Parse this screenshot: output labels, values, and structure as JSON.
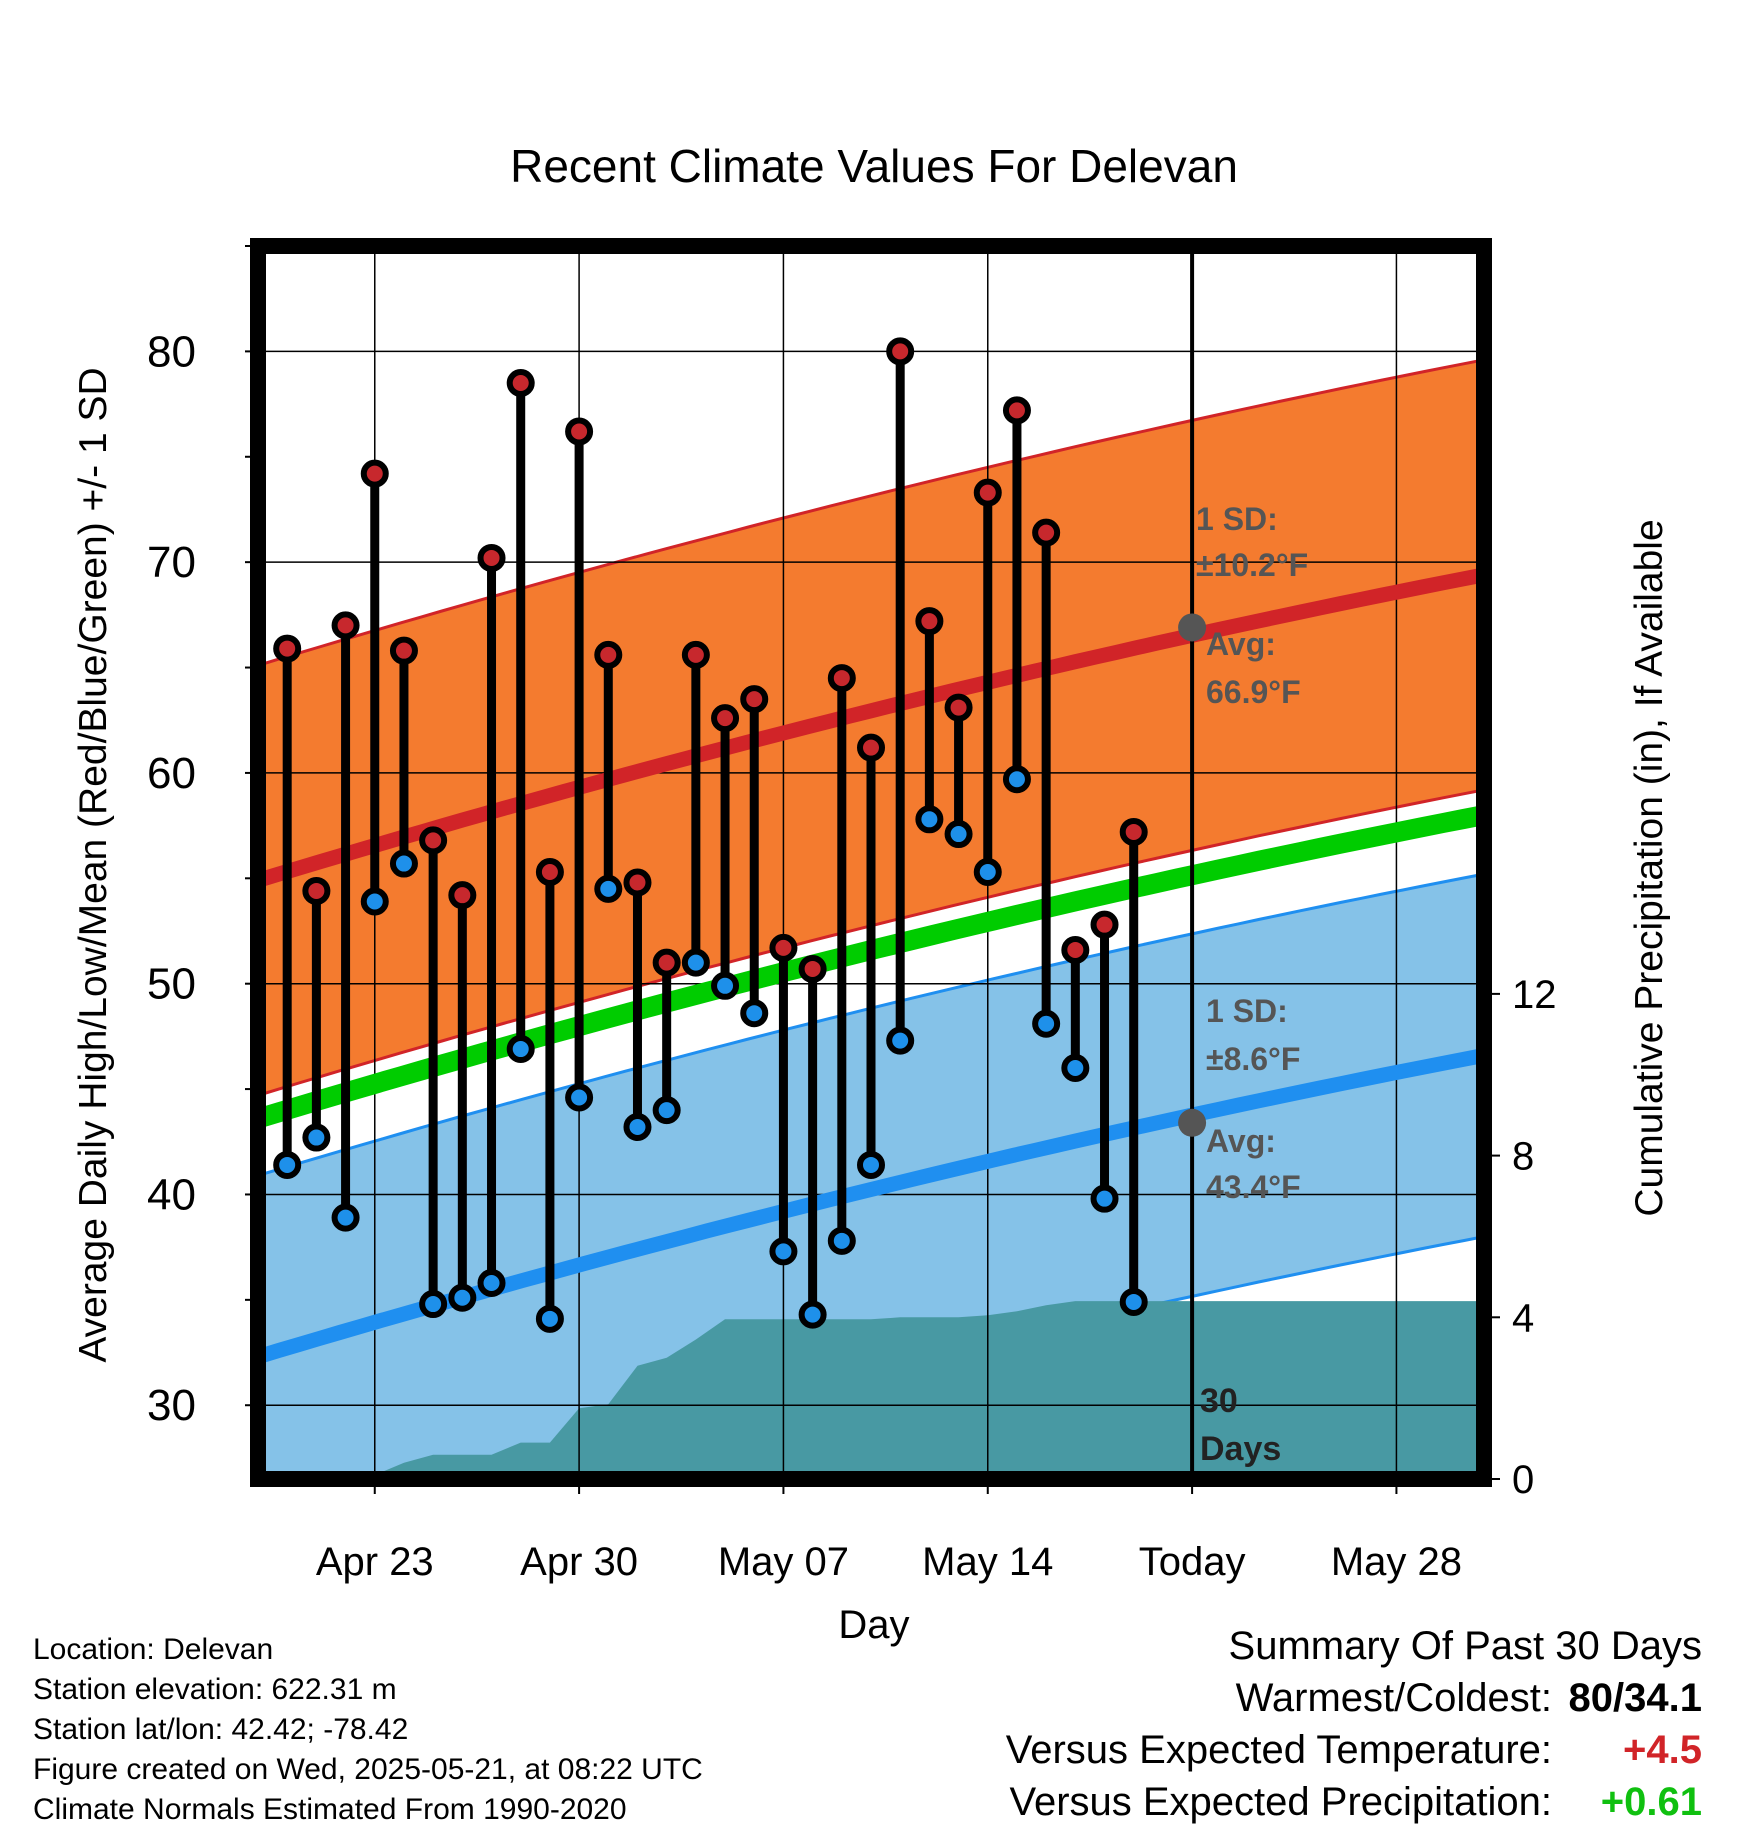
{
  "chart_data": {
    "type": "line",
    "title": "Recent Climate Values For Delevan",
    "xlabel": "Day",
    "ylabel": "Average Daily High/Low/Mean (Red/Blue/Green) +/- 1 SD",
    "ylabel_right": "Cumulative Precipitation (in), If Available",
    "x_ticks": [
      "Apr 23",
      "Apr 30",
      "May 07",
      "May 14",
      "Today",
      "May 28"
    ],
    "x_range": [
      "2025-04-19",
      "2025-05-31"
    ],
    "ylim": [
      26.5,
      85
    ],
    "y_ticks": [
      30,
      40,
      50,
      60,
      70,
      80
    ],
    "y2lim": [
      0,
      30.5
    ],
    "y2_ticks": [
      0,
      4,
      8,
      12
    ],
    "today": "2025-05-21",
    "today_label": [
      "30",
      "Days"
    ],
    "days": [
      "2025-04-20",
      "2025-04-21",
      "2025-04-22",
      "2025-04-23",
      "2025-04-24",
      "2025-04-25",
      "2025-04-26",
      "2025-04-27",
      "2025-04-28",
      "2025-04-29",
      "2025-04-30",
      "2025-05-01",
      "2025-05-02",
      "2025-05-03",
      "2025-05-04",
      "2025-05-05",
      "2025-05-06",
      "2025-05-07",
      "2025-05-08",
      "2025-05-09",
      "2025-05-10",
      "2025-05-11",
      "2025-05-12",
      "2025-05-13",
      "2025-05-14",
      "2025-05-15",
      "2025-05-16",
      "2025-05-17",
      "2025-05-18",
      "2025-05-19",
      "2025-05-20"
    ],
    "daily_high": [
      65.9,
      54.4,
      67.0,
      74.2,
      65.8,
      56.8,
      54.2,
      70.2,
      78.5,
      55.3,
      76.2,
      65.6,
      54.8,
      51.0,
      65.6,
      62.6,
      63.5,
      51.7,
      50.7,
      64.5,
      61.2,
      80.0,
      67.2,
      63.1,
      73.3,
      77.2,
      71.4,
      51.6,
      52.8,
      57.2,
      null
    ],
    "daily_low": [
      41.4,
      42.7,
      38.9,
      53.9,
      55.7,
      34.8,
      35.1,
      35.8,
      46.9,
      34.1,
      44.6,
      54.5,
      43.2,
      44.0,
      51.0,
      49.9,
      48.6,
      37.3,
      34.3,
      37.8,
      41.4,
      47.3,
      57.8,
      57.1,
      55.3,
      59.7,
      48.1,
      46.0,
      39.8,
      34.9,
      null
    ],
    "normal_dates": [
      "2025-04-19",
      "2025-05-31"
    ],
    "normal_high": [
      54.9,
      69.4
    ],
    "normal_high_sd": 10.2,
    "normal_low": [
      32.3,
      46.6
    ],
    "normal_low_sd": 8.6,
    "normal_mean": [
      43.6,
      58.0
    ],
    "today_high_avg": 66.9,
    "today_low_avg": 43.4,
    "precip_days": [
      "2025-04-19",
      "2025-04-20",
      "2025-04-21",
      "2025-04-22",
      "2025-04-23",
      "2025-04-24",
      "2025-04-25",
      "2025-04-26",
      "2025-04-27",
      "2025-04-28",
      "2025-04-29",
      "2025-04-30",
      "2025-05-01",
      "2025-05-02",
      "2025-05-03",
      "2025-05-04",
      "2025-05-05",
      "2025-05-06",
      "2025-05-07",
      "2025-05-08",
      "2025-05-09",
      "2025-05-10",
      "2025-05-11",
      "2025-05-12",
      "2025-05-13",
      "2025-05-14",
      "2025-05-15",
      "2025-05-16",
      "2025-05-17",
      "2025-05-18",
      "2025-05-19",
      "2025-05-20",
      "2025-05-31"
    ],
    "cumulative_precip": [
      0.0,
      0.1,
      0.1,
      0.1,
      0.1,
      0.4,
      0.6,
      0.6,
      0.6,
      0.9,
      0.9,
      1.75,
      1.85,
      2.8,
      3.0,
      3.45,
      3.95,
      3.95,
      3.95,
      3.95,
      3.95,
      3.95,
      4.0,
      4.0,
      4.0,
      4.05,
      4.15,
      4.3,
      4.4,
      4.4,
      4.4,
      4.4,
      4.4
    ],
    "colors": {
      "high_band": "#f47b2f",
      "high_line": "#d12428",
      "low_band": "#85c2e8",
      "low_line": "#1f8ff0",
      "mean_line": "#00cc00",
      "precip": "#4899a3",
      "annotation": "#555555",
      "high_dot": "#c7282d",
      "low_dot": "#1e90ea"
    }
  },
  "annotations": {
    "high_sd_label": "1 SD:",
    "high_sd_value": "±10.2°F",
    "high_avg_label": "Avg:",
    "high_avg_value": "66.9°F",
    "low_sd_label": "1 SD:",
    "low_sd_value": "±8.6°F",
    "low_avg_label": "Avg:",
    "low_avg_value": "43.4°F"
  },
  "info": {
    "location": "Location: Delevan",
    "elevation": "Station elevation: 622.31 m",
    "latlon": "Station lat/lon: 42.42; -78.42",
    "created": "Figure created on Wed, 2025-05-21, at 08:22 UTC",
    "normals": "Climate Normals Estimated From 1990-2020"
  },
  "summary": {
    "title": "Summary Of Past 30 Days",
    "warmest_label": "Warmest/Coldest:",
    "warmest_value": "80/34.1",
    "temp_label": "Versus Expected Temperature:",
    "temp_value": "+4.5",
    "temp_color": "#d12428",
    "precip_label": "Versus Expected Precipitation:",
    "precip_value": "+0.61",
    "precip_color": "#10c010"
  }
}
